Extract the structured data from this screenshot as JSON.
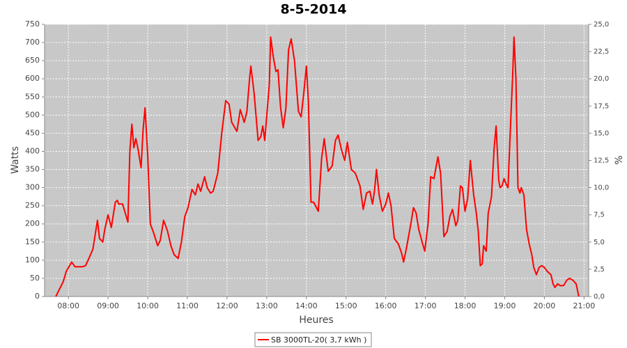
{
  "chart_data": {
    "type": "line",
    "title": "8-5-2014",
    "x_label": "Heures",
    "y_label": "Watts",
    "y2_label": "%",
    "x": [
      "07:41",
      "07:52",
      "07:57",
      "08:05",
      "08:10",
      "08:21",
      "08:26",
      "08:31",
      "08:37",
      "08:44",
      "08:47",
      "08:52",
      "08:55",
      "09:00",
      "09:05",
      "09:11",
      "09:14",
      "09:16",
      "09:22",
      "09:26",
      "09:30",
      "09:33",
      "09:36",
      "09:39",
      "09:42",
      "09:45",
      "09:50",
      "09:53",
      "09:56",
      "10:00",
      "10:04",
      "10:09",
      "10:15",
      "10:19",
      "10:24",
      "10:30",
      "10:35",
      "10:40",
      "10:46",
      "10:51",
      "10:56",
      "11:01",
      "11:07",
      "11:12",
      "11:16",
      "11:20",
      "11:26",
      "11:30",
      "11:35",
      "11:39",
      "11:46",
      "11:52",
      "11:58",
      "12:03",
      "12:07",
      "12:15",
      "12:20",
      "12:26",
      "12:30",
      "12:34",
      "12:36",
      "12:41",
      "12:47",
      "12:51",
      "12:54",
      "12:57",
      "13:04",
      "13:06",
      "13:10",
      "13:14",
      "13:17",
      "13:21",
      "13:25",
      "13:29",
      "13:33",
      "13:37",
      "13:42",
      "13:48",
      "13:52",
      "13:56",
      "14:00",
      "14:03",
      "14:07",
      "14:11",
      "14:18",
      "14:23",
      "14:27",
      "14:33",
      "14:39",
      "14:44",
      "14:48",
      "14:53",
      "14:58",
      "15:02",
      "15:08",
      "15:14",
      "15:21",
      "15:26",
      "15:31",
      "15:36",
      "15:40",
      "15:43",
      "15:46",
      "15:50",
      "15:55",
      "16:00",
      "16:04",
      "16:08",
      "16:13",
      "16:19",
      "16:24",
      "16:27",
      "16:31",
      "16:38",
      "16:42",
      "16:46",
      "16:50",
      "16:55",
      "16:59",
      "17:04",
      "17:08",
      "17:13",
      "17:19",
      "17:23",
      "17:28",
      "17:33",
      "17:37",
      "17:41",
      "17:46",
      "17:49",
      "17:53",
      "17:56",
      "18:00",
      "18:04",
      "18:08",
      "18:13",
      "18:17",
      "18:20",
      "18:23",
      "18:26",
      "18:28",
      "18:32",
      "18:35",
      "18:40",
      "18:44",
      "18:47",
      "18:51",
      "18:53",
      "18:56",
      "18:59",
      "19:02",
      "19:05",
      "19:09",
      "19:12",
      "19:14",
      "19:17",
      "19:20",
      "19:23",
      "19:25",
      "19:29",
      "19:33",
      "19:37",
      "19:41",
      "19:44",
      "19:48",
      "19:52",
      "19:56",
      "20:00",
      "20:04",
      "20:10",
      "20:13",
      "20:16",
      "20:20",
      "20:24",
      "20:29",
      "20:34",
      "20:38",
      "20:43",
      "20:48",
      "20:52"
    ],
    "series": [
      {
        "name": "SB 3000TL-20( 3,7 kWh )",
        "color": "#ff0000",
        "values": [
          0,
          40,
          70,
          95,
          82,
          82,
          85,
          105,
          130,
          210,
          160,
          150,
          185,
          225,
          190,
          260,
          265,
          255,
          255,
          230,
          205,
          400,
          475,
          410,
          435,
          410,
          355,
          460,
          520,
          390,
          200,
          175,
          140,
          155,
          210,
          180,
          140,
          115,
          105,
          150,
          220,
          245,
          295,
          280,
          310,
          290,
          330,
          300,
          285,
          290,
          340,
          450,
          540,
          530,
          480,
          455,
          515,
          480,
          510,
          600,
          635,
          560,
          430,
          440,
          470,
          430,
          585,
          715,
          660,
          620,
          625,
          520,
          465,
          520,
          680,
          710,
          650,
          510,
          495,
          560,
          635,
          540,
          260,
          260,
          235,
          380,
          435,
          345,
          360,
          430,
          445,
          405,
          375,
          425,
          350,
          340,
          305,
          240,
          285,
          290,
          255,
          290,
          350,
          280,
          235,
          255,
          285,
          250,
          160,
          145,
          120,
          95,
          130,
          200,
          245,
          230,
          185,
          150,
          125,
          200,
          330,
          325,
          385,
          340,
          165,
          180,
          220,
          240,
          195,
          210,
          305,
          300,
          235,
          270,
          375,
          280,
          230,
          180,
          85,
          90,
          140,
          125,
          230,
          275,
          410,
          470,
          320,
          300,
          305,
          325,
          310,
          300,
          480,
          610,
          715,
          600,
          300,
          285,
          300,
          280,
          185,
          145,
          115,
          80,
          60,
          80,
          85,
          80,
          70,
          60,
          35,
          25,
          35,
          30,
          30,
          45,
          50,
          45,
          35,
          0
        ]
      }
    ],
    "xlim": [
      "07:24",
      "21:07"
    ],
    "xticks": [
      "08:00",
      "09:00",
      "10:00",
      "11:00",
      "12:00",
      "13:00",
      "14:00",
      "15:00",
      "16:00",
      "17:00",
      "18:00",
      "19:00",
      "20:00",
      "21:00"
    ],
    "ylim": [
      0,
      750
    ],
    "yticks": [
      0,
      50,
      100,
      150,
      200,
      250,
      300,
      350,
      400,
      450,
      500,
      550,
      600,
      650,
      700,
      750
    ],
    "y2lim": [
      0,
      25
    ],
    "y2ticks": [
      {
        "value": 0,
        "label": "0,0"
      },
      {
        "value": 2.5,
        "label": "2,5"
      },
      {
        "value": 5,
        "label": "5,0"
      },
      {
        "value": 7.5,
        "label": "7,5"
      },
      {
        "value": 10,
        "label": "10,0"
      },
      {
        "value": 12.5,
        "label": "12,5"
      },
      {
        "value": 15,
        "label": "15,0"
      },
      {
        "value": 17.5,
        "label": "17,5"
      },
      {
        "value": 20,
        "label": "20,0"
      },
      {
        "value": 22.5,
        "label": "22,5"
      },
      {
        "value": 25,
        "label": "25,0"
      }
    ],
    "grid": true
  }
}
